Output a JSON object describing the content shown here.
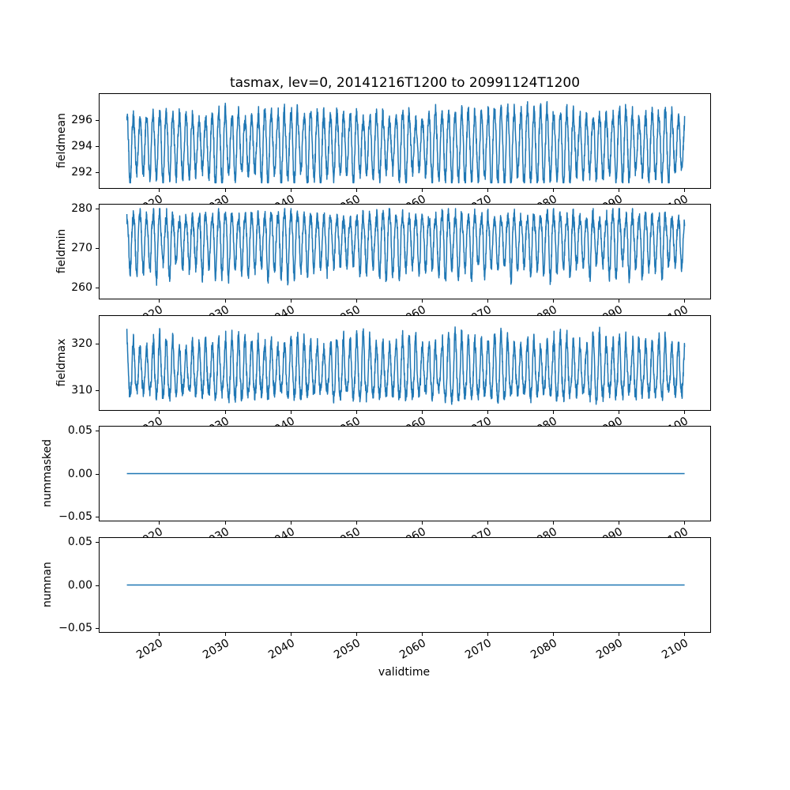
{
  "chart_data": {
    "type": "line",
    "title": "tasmax, lev=0, 20141216T1200 to 20991124T1200",
    "xlabel": "validtime",
    "line_color": "#1f77b4",
    "axis_color": "#000000",
    "grid": false,
    "legend": "none",
    "xlim": [
      2010.8,
      2103.8
    ],
    "x_data_range": [
      2014.96,
      2099.9
    ],
    "samples_per_year": 36,
    "x_tick_rotation_deg": 30,
    "x_ticks": [
      {
        "label": "2020",
        "value": 2020
      },
      {
        "label": "2030",
        "value": 2030
      },
      {
        "label": "2040",
        "value": 2040
      },
      {
        "label": "2050",
        "value": 2050
      },
      {
        "label": "2060",
        "value": 2060
      },
      {
        "label": "2070",
        "value": 2070
      },
      {
        "label": "2080",
        "value": 2080
      },
      {
        "label": "2090",
        "value": 2090
      },
      {
        "label": "2100",
        "value": 2100
      }
    ],
    "subplots": [
      {
        "ylabel": "fieldmean",
        "ylim": [
          290.8,
          298.0
        ],
        "yticks": [
          {
            "label": "296",
            "value": 296
          },
          {
            "label": "294",
            "value": 294
          },
          {
            "label": "292",
            "value": 292
          }
        ],
        "series": {
          "kind": "seasonal",
          "base": 294.2,
          "amp_up": 2.2,
          "amp_down": 2.6,
          "amp_jitter": 0.5,
          "noise": 0.55,
          "phase": 0.29,
          "clip": [
            291.2,
            297.6
          ],
          "seed": 101,
          "summary": "annual cycle oscillating between about 291.3 and 297.5"
        }
      },
      {
        "ylabel": "fieldmin",
        "ylim": [
          257.2,
          280.9
        ],
        "yticks": [
          {
            "label": "280",
            "value": 280
          },
          {
            "label": "270",
            "value": 270
          },
          {
            "label": "260",
            "value": 260
          }
        ],
        "series": {
          "kind": "seasonal",
          "base": 272.8,
          "amp_up": 5.2,
          "amp_down": 8.8,
          "amp_jitter": 0.5,
          "noise": 1.6,
          "phase": 0.29,
          "clip": [
            258.3,
            279.9
          ],
          "seed": 202,
          "summary": "dense band near 270-279 with yearly dips to about 258-266"
        }
      },
      {
        "ylabel": "fieldmax",
        "ylim": [
          305.8,
          325.9
        ],
        "yticks": [
          {
            "label": "320",
            "value": 320
          },
          {
            "label": "310",
            "value": 310
          }
        ],
        "series": {
          "kind": "seasonal",
          "base": 313.2,
          "amp_up": 7.5,
          "amp_down": 4.2,
          "amp_jitter": 0.5,
          "noise": 1.4,
          "phase": 0.29,
          "clip": [
            306.8,
            325.3
          ],
          "seed": 303,
          "summary": "dense band near 308-318 with yearly peaks to about 320-325"
        }
      },
      {
        "ylabel": "nummasked",
        "ylim": [
          -0.055,
          0.055
        ],
        "yticks": [
          {
            "label": "0.05",
            "value": 0.05
          },
          {
            "label": "0.00",
            "value": 0
          },
          {
            "label": "−0.05",
            "value": -0.05
          }
        ],
        "series": {
          "kind": "constant",
          "value": 0,
          "summary": "constant 0 for entire record"
        }
      },
      {
        "ylabel": "numnan",
        "ylim": [
          -0.055,
          0.055
        ],
        "yticks": [
          {
            "label": "0.05",
            "value": 0.05
          },
          {
            "label": "0.00",
            "value": 0
          },
          {
            "label": "−0.05",
            "value": -0.05
          }
        ],
        "series": {
          "kind": "constant",
          "value": 0,
          "summary": "constant 0 for entire record"
        }
      }
    ]
  }
}
